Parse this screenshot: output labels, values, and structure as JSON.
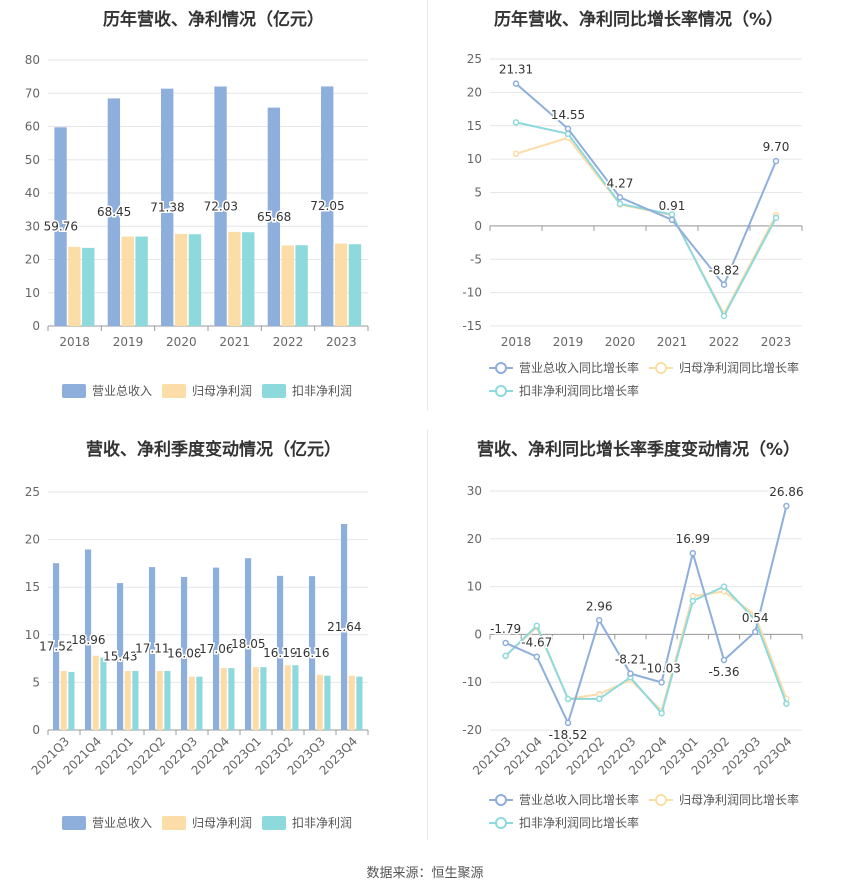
{
  "source_text": "数据来源：恒生聚源",
  "colors": {
    "revenue": "#8eaedc",
    "parent_profit": "#fcdca7",
    "deducted_profit": "#8ed9dc",
    "grid": "#e6e6e6",
    "axis_text": "#666666",
    "label_text": "#333333"
  },
  "chart_data": [
    {
      "type": "bar",
      "title": "历年营收、净利情况（亿元）",
      "categories": [
        "2018",
        "2019",
        "2020",
        "2021",
        "2022",
        "2023"
      ],
      "ylim": [
        0,
        80
      ],
      "yticks": [
        0,
        10,
        20,
        30,
        40,
        50,
        60,
        70,
        80
      ],
      "series": [
        {
          "name": "营业总收入",
          "values": [
            59.76,
            68.45,
            71.38,
            72.03,
            65.68,
            72.05
          ],
          "labels": [
            "59.76",
            "68.45",
            "71.38",
            "72.03",
            "65.68",
            "72.05"
          ]
        },
        {
          "name": "归母净利润",
          "values": [
            23.8,
            26.9,
            27.7,
            28.3,
            24.2,
            24.8
          ]
        },
        {
          "name": "扣非净利润",
          "values": [
            23.5,
            26.9,
            27.6,
            28.2,
            24.3,
            24.6
          ]
        }
      ],
      "legend": "bottom",
      "grid": true
    },
    {
      "type": "line",
      "title": "历年营收、净利同比增长率情况（%）",
      "categories": [
        "2018",
        "2019",
        "2020",
        "2021",
        "2022",
        "2023"
      ],
      "ylim": [
        -15,
        25
      ],
      "yticks": [
        -15,
        -10,
        -5,
        0,
        5,
        10,
        15,
        20,
        25
      ],
      "series": [
        {
          "name": "营业总收入同比增长率",
          "values": [
            21.31,
            14.55,
            4.27,
            0.91,
            -8.82,
            9.7
          ],
          "labels": [
            "21.31",
            "14.55",
            "4.27",
            "0.91",
            "-8.82",
            "9.70"
          ]
        },
        {
          "name": "归母净利润同比增长率",
          "values": [
            10.8,
            13.2,
            3.2,
            1.6,
            -13.2,
            1.6
          ]
        },
        {
          "name": "扣非净利润同比增长率",
          "values": [
            15.5,
            13.8,
            3.3,
            1.7,
            -13.5,
            1.2
          ]
        }
      ],
      "legend": "bottom",
      "grid": true
    },
    {
      "type": "bar",
      "title": "营收、净利季度变动情况（亿元）",
      "categories": [
        "2021Q3",
        "2021Q4",
        "2022Q1",
        "2022Q2",
        "2022Q3",
        "2022Q4",
        "2023Q1",
        "2023Q2",
        "2023Q3",
        "2023Q4"
      ],
      "ylim": [
        0,
        25
      ],
      "yticks": [
        0,
        5,
        10,
        15,
        20,
        25
      ],
      "series": [
        {
          "name": "营业总收入",
          "values": [
            17.52,
            18.96,
            15.43,
            17.11,
            16.08,
            17.06,
            18.05,
            16.19,
            16.16,
            21.64
          ],
          "labels": [
            "17.52",
            "18.96",
            "15.43",
            "17.11",
            "16.08",
            "17.06",
            "18.05",
            "16.19",
            "16.16",
            "21.64"
          ]
        },
        {
          "name": "归母净利润",
          "values": [
            6.2,
            7.8,
            6.2,
            6.2,
            5.6,
            6.5,
            6.6,
            6.8,
            5.8,
            5.7
          ]
        },
        {
          "name": "扣非净利润",
          "values": [
            6.1,
            7.6,
            6.2,
            6.2,
            5.6,
            6.5,
            6.6,
            6.8,
            5.7,
            5.6
          ]
        }
      ],
      "legend": "bottom",
      "grid": true
    },
    {
      "type": "line",
      "title": "营收、净利同比增长率季度变动情况（%）",
      "categories": [
        "2021Q3",
        "2021Q4",
        "2022Q1",
        "2022Q2",
        "2022Q3",
        "2022Q4",
        "2023Q1",
        "2023Q2",
        "2023Q3",
        "2023Q4"
      ],
      "ylim": [
        -20,
        30
      ],
      "yticks": [
        -20,
        -10,
        0,
        10,
        20,
        30
      ],
      "series": [
        {
          "name": "营业总收入同比增长率",
          "values": [
            -1.79,
            -4.67,
            -18.52,
            2.96,
            -8.21,
            -10.03,
            16.99,
            -5.36,
            0.54,
            26.86
          ],
          "labels": [
            "-1.79",
            "-4.67",
            "-18.52",
            "2.96",
            "-8.21",
            "-10.03",
            "16.99",
            "-5.36",
            "0.54",
            "26.86"
          ]
        },
        {
          "name": "归母净利润同比增长率",
          "values": [
            -4.5,
            1.5,
            -13.5,
            -12.5,
            -9.5,
            -16.0,
            8.0,
            9.0,
            4.0,
            -13.5
          ]
        },
        {
          "name": "扣非净利润同比增长率",
          "values": [
            -4.5,
            1.8,
            -13.5,
            -13.5,
            -9.0,
            -16.5,
            7.0,
            10.0,
            3.0,
            -14.5
          ]
        }
      ],
      "legend": "bottom",
      "grid": true
    }
  ]
}
